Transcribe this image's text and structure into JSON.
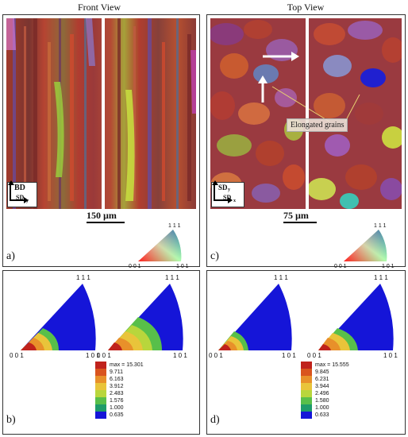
{
  "titles": {
    "front": "Front View",
    "top": "Top View"
  },
  "panel_labels": {
    "a": "a)",
    "b": "b)",
    "c": "c)",
    "d": "d)"
  },
  "front_axes": {
    "vertical": "BD",
    "horizontal": "SD",
    "horizontal_sub": "y"
  },
  "top_axes": {
    "vertical": "SD",
    "vertical_sub": "y",
    "horizontal": "SD",
    "horizontal_sub": "x"
  },
  "scalebars": {
    "front": "150 µm",
    "top": "75 µm"
  },
  "callout": "Elongated grains",
  "ipf_key": {
    "top": "1 1 1",
    "left": "0 0 1",
    "right": "1 0 1"
  },
  "pole_labels": {
    "top": "1 1 1",
    "left": "0 0 1",
    "right": "1 0 1"
  },
  "legend_b": {
    "max": "max = 15.301",
    "values": [
      "9.711",
      "6.163",
      "3.912",
      "2.483",
      "1.576",
      "1.000",
      "0.635"
    ]
  },
  "legend_d": {
    "max": "max = 15.555",
    "values": [
      "9.845",
      "6.231",
      "3.944",
      "2.496",
      "1.580",
      "1.000",
      "0.633"
    ]
  },
  "legend_colors": [
    "#c0221c",
    "#d9541e",
    "#e8902a",
    "#e9c43a",
    "#b8d63c",
    "#58bf4a",
    "#1e9b6a",
    "#1515d8"
  ]
}
